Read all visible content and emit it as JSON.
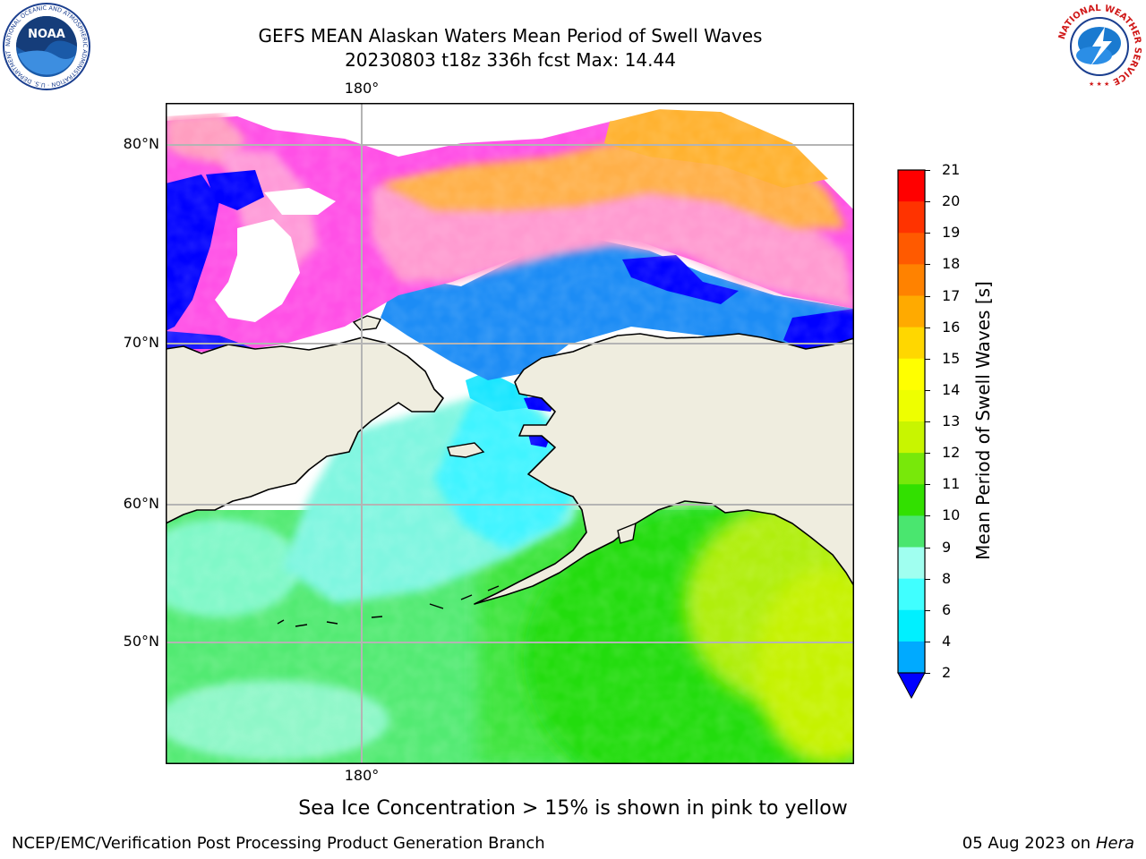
{
  "title_line1": "GEFS MEAN Alaskan Waters Mean Period of Swell Waves",
  "title_line2": "20230803 t18z 336h fcst   Max: 14.44",
  "lon_label_top": "180°",
  "lon_label_bottom": "180°",
  "lat_labels": [
    "80°N",
    "70°N",
    "60°N",
    "50°N"
  ],
  "colorbar": {
    "title": "Mean Period of Swell Waves [s]",
    "ticks": [
      "21",
      "20",
      "19",
      "18",
      "17",
      "16",
      "15",
      "14",
      "13",
      "12",
      "11",
      "10",
      "9",
      "8",
      "6",
      "4",
      "2"
    ],
    "colors": [
      "#ff0000",
      "#ff3300",
      "#ff5a00",
      "#ff8200",
      "#ffaa00",
      "#ffd700",
      "#ffff00",
      "#eeff00",
      "#c8f500",
      "#78e80a",
      "#32e000",
      "#4ae66f",
      "#a0fff0",
      "#40ffff",
      "#00f0ff",
      "#00aaff"
    ],
    "extend_color": "#0000ff"
  },
  "logos": {
    "noaa_text": "NOAA",
    "noaa_ring_text": "NATIONAL OCEANIC AND ATMOSPHERIC ADMINISTRATION · U.S. DEPARTMENT OF COMMERCE",
    "nws_ring_text": "NATIONAL WEATHER SERVICE"
  },
  "note": "Sea Ice Concentration > 15% is shown in pink to yellow",
  "footer_left": "NCEP/EMC/Verification Post Processing Product Generation Branch",
  "footer_date": "05 Aug 2023 on",
  "footer_machine": "Hera"
}
